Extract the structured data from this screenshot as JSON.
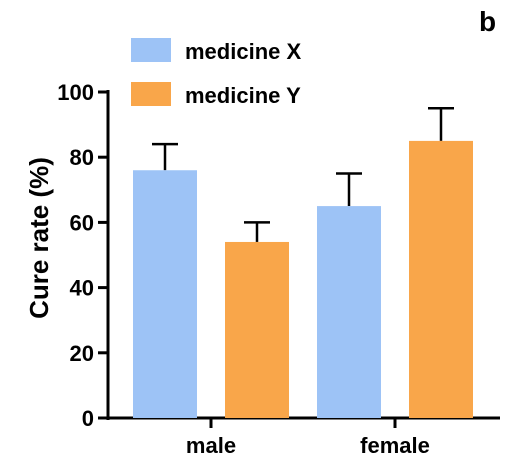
{
  "panel_label": "b",
  "chart_data": {
    "type": "bar",
    "categories": [
      "male",
      "female"
    ],
    "series": [
      {
        "name": "medicine X",
        "color": "#9dc3f6",
        "values": [
          76,
          65
        ],
        "errors": [
          8,
          10
        ]
      },
      {
        "name": "medicine Y",
        "color": "#f9a64a",
        "values": [
          54,
          85
        ],
        "errors": [
          6,
          10
        ]
      }
    ],
    "ylabel": "Cure rate (%)",
    "xlabel": "",
    "ylim": [
      0,
      100
    ],
    "yticks": [
      0,
      20,
      40,
      60,
      80,
      100
    ],
    "legend_position": "top-left",
    "grid": false
  }
}
